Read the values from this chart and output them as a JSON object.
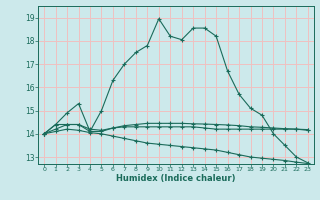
{
  "title": "",
  "xlabel": "Humidex (Indice chaleur)",
  "background_color": "#cce9eb",
  "grid_color": "#f0c0c0",
  "line_color": "#1a6b5a",
  "x_values": [
    0,
    1,
    2,
    3,
    4,
    5,
    6,
    7,
    8,
    9,
    10,
    11,
    12,
    13,
    14,
    15,
    16,
    17,
    18,
    19,
    20,
    21,
    22,
    23
  ],
  "ylim": [
    12.7,
    19.5
  ],
  "yticks": [
    13,
    14,
    15,
    16,
    17,
    18,
    19
  ],
  "xlim": [
    -0.5,
    23.5
  ],
  "series": [
    [
      14.0,
      14.4,
      14.4,
      14.4,
      14.1,
      14.1,
      14.25,
      14.3,
      14.3,
      14.3,
      14.3,
      14.3,
      14.3,
      14.3,
      14.25,
      14.2,
      14.2,
      14.2,
      14.2,
      14.2,
      14.2,
      14.2,
      14.2,
      14.15
    ],
    [
      14.0,
      14.2,
      14.4,
      14.4,
      14.2,
      14.15,
      14.25,
      14.35,
      14.4,
      14.45,
      14.45,
      14.45,
      14.45,
      14.43,
      14.42,
      14.4,
      14.38,
      14.35,
      14.3,
      14.28,
      14.25,
      14.22,
      14.2,
      14.18
    ],
    [
      14.0,
      14.1,
      14.2,
      14.15,
      14.05,
      14.0,
      13.9,
      13.8,
      13.7,
      13.6,
      13.55,
      13.5,
      13.45,
      13.4,
      13.35,
      13.3,
      13.2,
      13.1,
      13.0,
      12.95,
      12.9,
      12.85,
      12.78,
      12.72
    ],
    [
      14.0,
      14.4,
      14.9,
      15.3,
      14.1,
      15.0,
      16.3,
      17.0,
      17.5,
      17.8,
      18.95,
      18.2,
      18.05,
      18.55,
      18.55,
      18.2,
      16.7,
      15.7,
      15.1,
      14.8,
      14.0,
      13.5,
      13.0,
      12.75
    ]
  ]
}
